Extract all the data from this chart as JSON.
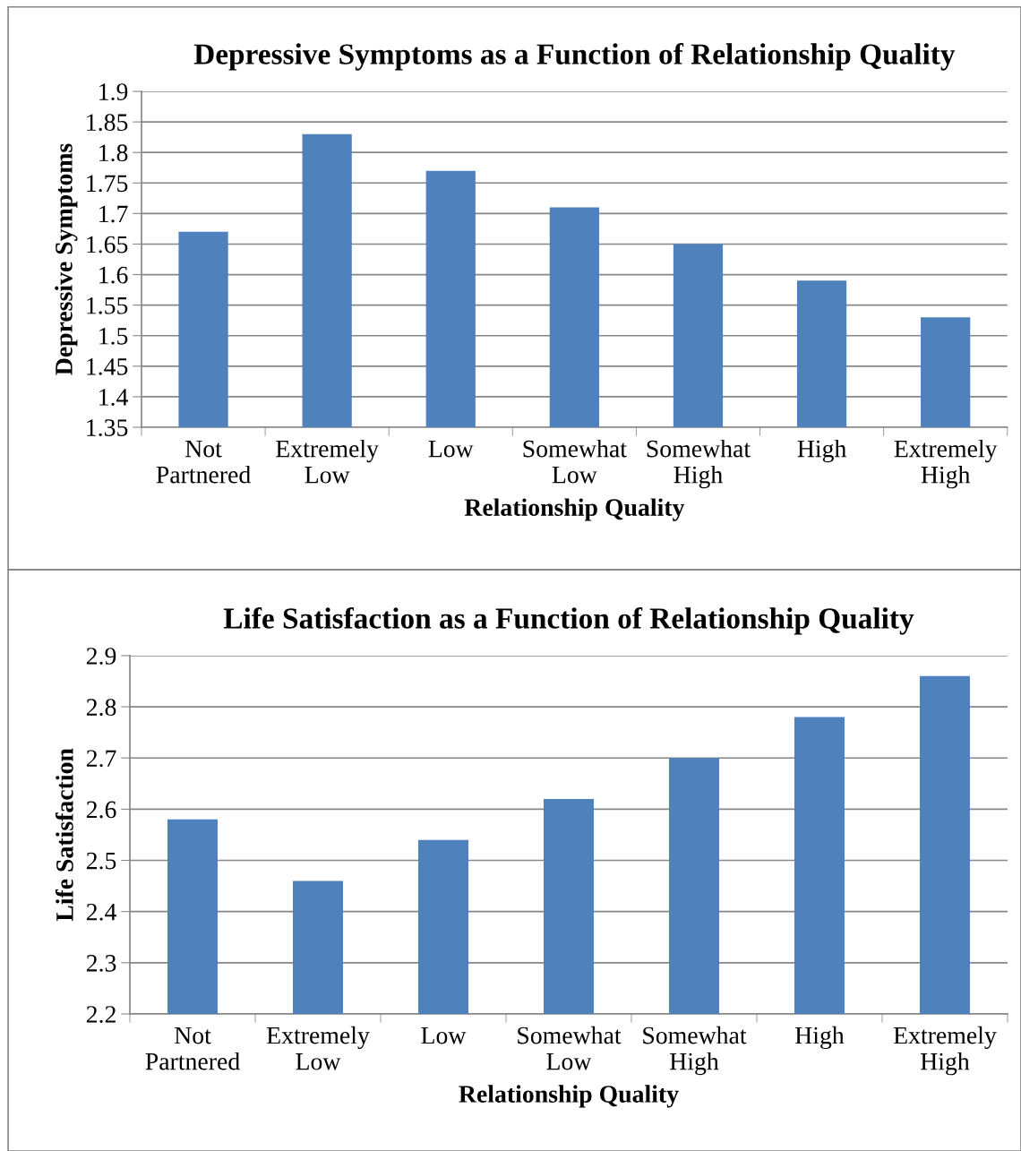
{
  "chart_data": [
    {
      "type": "bar",
      "title": "Depressive Symptoms as a Function of Relationship Quality",
      "xlabel": "Relationship Quality",
      "ylabel": "Depressive Symptoms",
      "categories": [
        "Not\nPartnered",
        "Extremely\nLow",
        "Low",
        "Somewhat\nLow",
        "Somewhat\nHigh",
        "High",
        "Extremely\nHigh"
      ],
      "values": [
        1.67,
        1.83,
        1.77,
        1.71,
        1.65,
        1.59,
        1.53
      ],
      "color": "#4f81bd",
      "ylim": [
        1.35,
        1.9
      ],
      "yticks": [
        1.35,
        1.4,
        1.45,
        1.5,
        1.55,
        1.6,
        1.65,
        1.7,
        1.75,
        1.8,
        1.85,
        1.9
      ],
      "grid": "y",
      "legend": false
    },
    {
      "type": "bar",
      "title": "Life Satisfaction as a Function of Relationship Quality",
      "xlabel": "Relationship Quality",
      "ylabel": "Life Satisfaction",
      "categories": [
        "Not\nPartnered",
        "Extremely\nLow",
        "Low",
        "Somewhat\nLow",
        "Somewhat\nHigh",
        "High",
        "Extremely\nHigh"
      ],
      "values": [
        2.58,
        2.46,
        2.54,
        2.62,
        2.7,
        2.78,
        2.86
      ],
      "color": "#4f81bd",
      "ylim": [
        2.2,
        2.9
      ],
      "yticks": [
        2.2,
        2.3,
        2.4,
        2.5,
        2.6,
        2.7,
        2.8,
        2.9
      ],
      "grid": "y",
      "legend": false
    }
  ]
}
